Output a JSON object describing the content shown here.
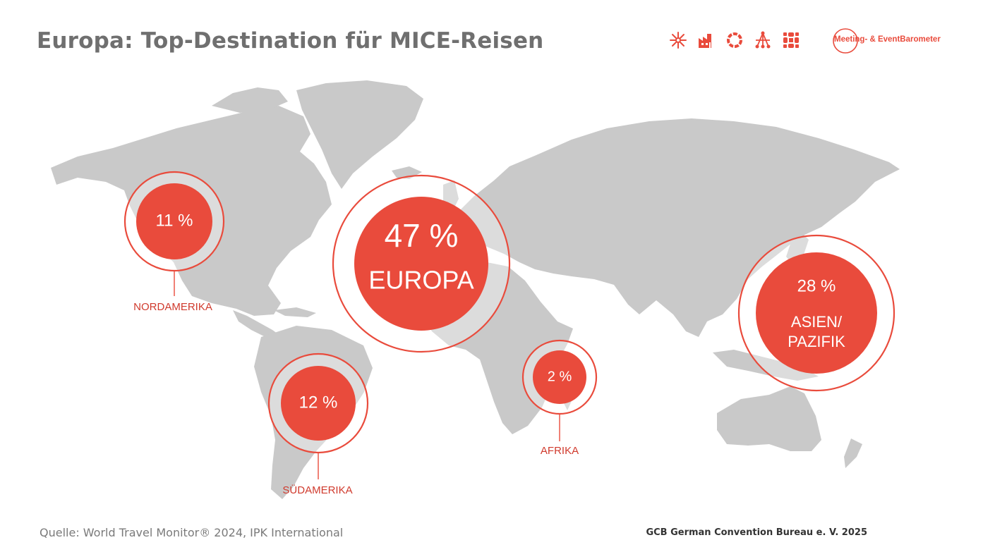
{
  "title": "Europa: Top-Destination für MICE-Reisen",
  "brand": {
    "logo_text": "Meeting- & EventBarometer",
    "accent_color": "#e94b3c",
    "map_color": "#c9c9c9",
    "icons": [
      "asterisk-icon",
      "factory-icon",
      "ring-icon",
      "network-icon",
      "grid-flower-icon"
    ]
  },
  "source": "Quelle: World Travel Monitor® 2024, IPK International",
  "copyright": "GCB German Convention Bureau e. V. 2025",
  "chart_data": {
    "type": "bubble-map",
    "title": "Europa: Top-Destination für MICE-Reisen",
    "unit": "%",
    "series": [
      {
        "region": "NORDAMERIKA",
        "value": 11,
        "value_label": "11 %",
        "label": "NORDAMERIKA"
      },
      {
        "region": "EUROPA",
        "value": 47,
        "value_label": "47 %",
        "label": "EUROPA"
      },
      {
        "region": "ASIEN/ PAZIFIK",
        "value": 28,
        "value_label": "28 %",
        "label": "ASIEN/ PAZIFIK",
        "label_lines": [
          "ASIEN/",
          "PAZIFIK"
        ]
      },
      {
        "region": "SÜDAMERIKA",
        "value": 12,
        "value_label": "12 %",
        "label": "SÜDAMERIKA"
      },
      {
        "region": "AFRIKA",
        "value": 2,
        "value_label": "2 %",
        "label": "AFRIKA"
      }
    ]
  }
}
